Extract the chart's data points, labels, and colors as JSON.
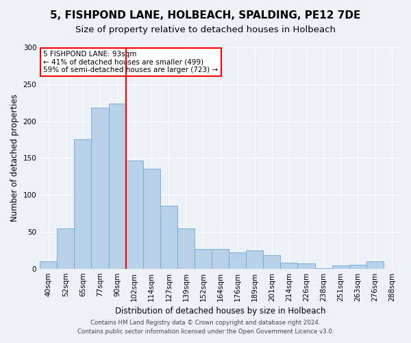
{
  "title": "5, FISHPOND LANE, HOLBEACH, SPALDING, PE12 7DE",
  "subtitle": "Size of property relative to detached houses in Holbeach",
  "xlabel": "Distribution of detached houses by size in Holbeach",
  "ylabel": "Number of detached properties",
  "bar_values": [
    10,
    55,
    175,
    218,
    224,
    147,
    135,
    85,
    55,
    27,
    27,
    22,
    25,
    18,
    8,
    7,
    1,
    4,
    5,
    10,
    0
  ],
  "bar_labels": [
    "40sqm",
    "52sqm",
    "65sqm",
    "77sqm",
    "90sqm",
    "102sqm",
    "114sqm",
    "127sqm",
    "139sqm",
    "152sqm",
    "164sqm",
    "176sqm",
    "189sqm",
    "201sqm",
    "214sqm",
    "226sqm",
    "238sqm",
    "251sqm",
    "263sqm",
    "276sqm",
    "288sqm"
  ],
  "bar_color": "#b8d0e8",
  "bar_edge_color": "#7aafd4",
  "vline_x_index": 4.5,
  "vline_color": "red",
  "annotation_title": "5 FISHPOND LANE: 93sqm",
  "annotation_line1": "← 41% of detached houses are smaller (499)",
  "annotation_line2": "59% of semi-detached houses are larger (723) →",
  "annotation_box_color": "white",
  "annotation_box_edge_color": "red",
  "ylim": [
    0,
    300
  ],
  "yticks": [
    0,
    50,
    100,
    150,
    200,
    250,
    300
  ],
  "footer1": "Contains HM Land Registry data © Crown copyright and database right 2024.",
  "footer2": "Contains public sector information licensed under the Open Government Licence v3.0.",
  "background_color": "#eef2f8",
  "grid_color": "white",
  "title_fontsize": 11,
  "subtitle_fontsize": 9.5,
  "axis_label_fontsize": 8.5,
  "tick_fontsize": 7.5,
  "footer_fontsize": 6.2
}
